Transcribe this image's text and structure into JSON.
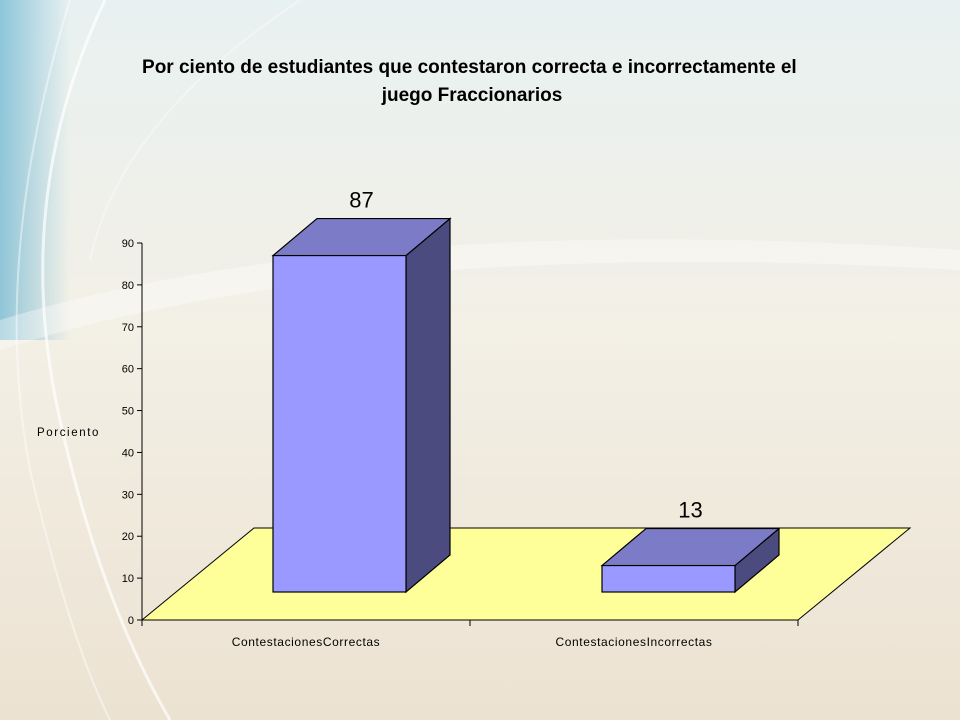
{
  "theme": {
    "background_top": "#e8f1f1",
    "background_bottom": "#ece2d2",
    "swoosh": "#ffffff",
    "accent_left": "#6fb7d3",
    "floor": "#ffff99",
    "bar_front": "#9999ff",
    "bar_top": "#7b7bc8",
    "bar_side": "#4b4b80"
  },
  "chart_data": {
    "type": "bar",
    "style": "3d-column",
    "title": "Por ciento de estudiantes que contestaron correcta e incorrectamente el juego Fraccionarios",
    "title_lines": [
      "Por ciento de estudiantes que contestaron correcta e incorrectamente el",
      "juego Fraccionarios"
    ],
    "ylabel": "Porciento",
    "xlabel": "",
    "categories": [
      "ContestacionesCorrectas",
      "ContestacionesIncorrectas"
    ],
    "values": [
      87,
      13
    ],
    "data_labels": [
      "87",
      "13"
    ],
    "ylim": [
      0,
      90
    ],
    "yticks": [
      "0",
      "10",
      "20",
      "30",
      "40",
      "50",
      "60",
      "70",
      "80",
      "90"
    ],
    "grid": false,
    "legend": "none"
  }
}
